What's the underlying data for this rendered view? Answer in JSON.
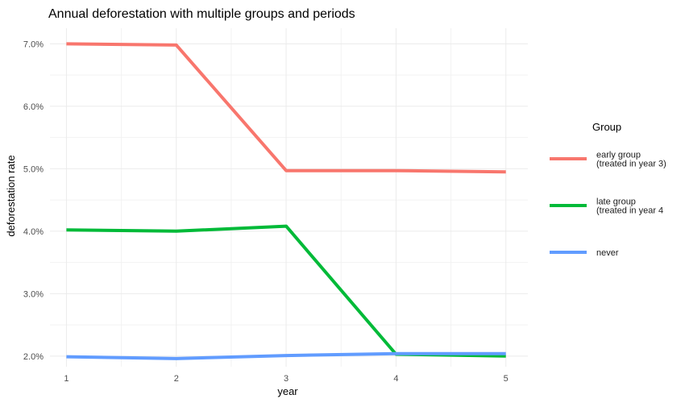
{
  "chart_data": {
    "type": "line",
    "title": "Annual deforestation with multiple groups and periods",
    "xlabel": "year",
    "ylabel": "deforestation rate",
    "x": [
      1,
      2,
      3,
      4,
      5
    ],
    "x_ticks": [
      "1",
      "2",
      "3",
      "4",
      "5"
    ],
    "xlim": [
      0.85,
      5.2
    ],
    "ylim": [
      1.83,
      7.25
    ],
    "y_ticks": [
      2,
      3,
      4,
      5,
      6,
      7
    ],
    "y_tick_labels": [
      "2.0%",
      "3.0%",
      "4.0%",
      "5.0%",
      "6.0%",
      "7.0%"
    ],
    "grid": true,
    "legend": {
      "title": "Group",
      "position": "right"
    },
    "series": [
      {
        "name": "early group\n(treated in year 3)",
        "name_lines": [
          "early group",
          "(treated in year 3)"
        ],
        "color": "#F8766D",
        "values": [
          7.0,
          6.98,
          4.97,
          4.97,
          4.95
        ]
      },
      {
        "name": "late group\n(treated in year 4",
        "name_lines": [
          "late group",
          "(treated in year 4"
        ],
        "color": "#00BA38",
        "values": [
          4.02,
          4.0,
          4.08,
          2.03,
          2.0
        ]
      },
      {
        "name": "never",
        "name_lines": [
          "never"
        ],
        "color": "#619CFF",
        "values": [
          1.99,
          1.96,
          2.01,
          2.04,
          2.04
        ]
      }
    ]
  }
}
